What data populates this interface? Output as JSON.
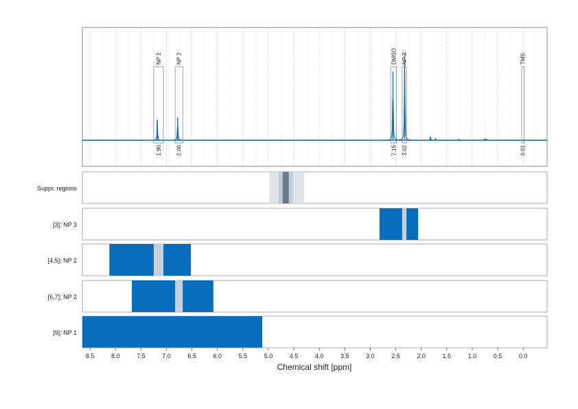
{
  "chart_data": {
    "type": "area",
    "xlabel": "Chemical shift [ppm]",
    "xlim": [
      8.65,
      -0.47
    ],
    "x_ticks": [
      "8.5",
      "8.0",
      "7.5",
      "7.0",
      "6.5",
      "6.0",
      "5.5",
      "5.0",
      "4.5",
      "4.0",
      "3.5",
      "3.0",
      "2.5",
      "2.0",
      "1.5",
      "1.0",
      "0.5",
      "0.0"
    ],
    "colors": {
      "spectrum": "#1f6fad",
      "region": "#0a6dbb",
      "overlap": "#c6d0d8",
      "suppr_light": "#dde3e9",
      "suppr_mid": "#c3ccd4",
      "suppr_dark": "#6b7b87",
      "integral_text": "#e0301e"
    },
    "spectrum": {
      "peaks": [
        {
          "ppm": 7.18,
          "height": 0.3
        },
        {
          "ppm": 6.78,
          "height": 0.33
        },
        {
          "ppm": 2.555,
          "height": 1.0
        },
        {
          "ppm": 2.325,
          "height": 1.25
        },
        {
          "ppm": 1.82,
          "height": 0.05
        },
        {
          "ppm": 1.72,
          "height": 0.025
        },
        {
          "ppm": 1.27,
          "height": 0.02
        },
        {
          "ppm": 0.75,
          "height": 0.025
        },
        {
          "ppm": 0.72,
          "height": 0.02
        }
      ],
      "annotations": [
        {
          "label": "NP 2",
          "from": 7.25,
          "to": 7.06,
          "integral": "1.90"
        },
        {
          "label": "NP 2",
          "from": 6.83,
          "to": 6.68,
          "integral": "2.00"
        },
        {
          "label": "DMSO",
          "from": 2.6,
          "to": 2.485,
          "integral": "7.15"
        },
        {
          "label": "NP 3",
          "from": 2.375,
          "to": 2.29,
          "integral": "3.02"
        },
        {
          "label": "TMS",
          "from": 0.03,
          "to": -0.02,
          "integral": "0.01"
        }
      ]
    },
    "tracks": [
      {
        "label": "Suppr. regions",
        "bands": [
          {
            "from": 4.98,
            "to": 4.3,
            "kind": "suppr_light"
          },
          {
            "from": 4.8,
            "to": 4.52,
            "kind": "suppr_mid"
          },
          {
            "from": 4.72,
            "to": 4.6,
            "kind": "suppr_dark"
          }
        ]
      },
      {
        "label": "[3]; NP 3",
        "bands": [
          {
            "from": 2.82,
            "to": 2.06,
            "kind": "region"
          },
          {
            "from": 2.375,
            "to": 2.29,
            "kind": "overlap"
          }
        ]
      },
      {
        "label": "[4,5]; NP 2",
        "bands": [
          {
            "from": 8.12,
            "to": 6.52,
            "kind": "region"
          },
          {
            "from": 7.25,
            "to": 7.06,
            "kind": "overlap"
          }
        ]
      },
      {
        "label": "[6,7]; NP 2",
        "bands": [
          {
            "from": 7.68,
            "to": 6.08,
            "kind": "region"
          },
          {
            "from": 6.83,
            "to": 6.68,
            "kind": "overlap"
          }
        ]
      },
      {
        "label": "[9]; NP 1",
        "bands": [
          {
            "from": 8.65,
            "to": 5.12,
            "kind": "region"
          }
        ]
      }
    ]
  }
}
